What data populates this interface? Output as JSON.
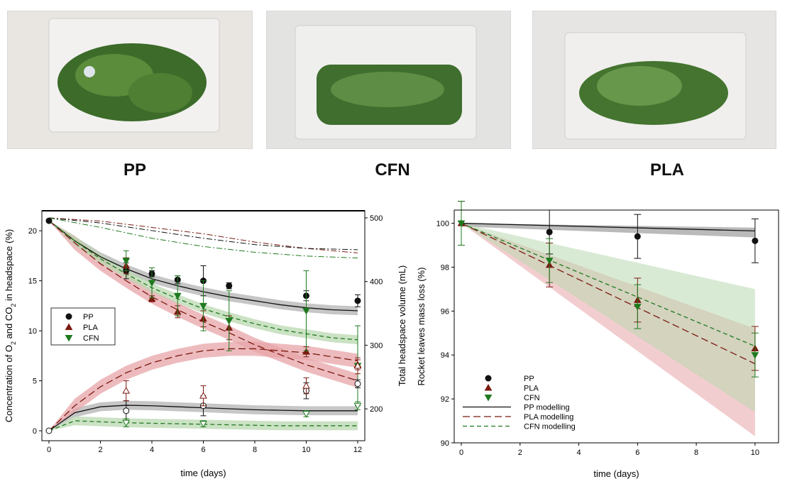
{
  "photos": [
    {
      "label": "PP"
    },
    {
      "label": "CFN"
    },
    {
      "label": "PLA"
    }
  ],
  "chart_data": [
    {
      "type": "scatter",
      "xlabel": "time (days)",
      "ylabel_parts": [
        "Concentration of O",
        "2",
        " and CO",
        "2",
        " in headspace (%)"
      ],
      "y2label": "Total headspace volume (mL)",
      "xlim": [
        0,
        12
      ],
      "ylim": [
        0,
        22
      ],
      "y2lim": [
        150,
        500
      ],
      "xticks": [
        0,
        2,
        4,
        6,
        8,
        10,
        12
      ],
      "yticks": [
        0,
        5,
        10,
        15,
        20
      ],
      "y2ticks": [
        200,
        300,
        400,
        500
      ],
      "colors": {
        "PP": "#111111",
        "PLA": "#7b1a10",
        "CFN": "#1f7a1f"
      },
      "legend": [
        "PP",
        "PLA",
        "CFN"
      ],
      "legend_position": "center-left",
      "series": [
        {
          "name": "PP",
          "kind": "O2",
          "x": [
            0,
            3,
            4,
            5,
            6,
            7,
            10,
            12
          ],
          "y": [
            21,
            16,
            15.7,
            15.1,
            15,
            14.5,
            13.5,
            13
          ],
          "err": [
            0,
            0.8,
            0.3,
            0.4,
            1.5,
            0.3,
            0.5,
            0.6
          ]
        },
        {
          "name": "PLA",
          "kind": "O2",
          "x": [
            3,
            4,
            5,
            6,
            7,
            10,
            12
          ],
          "y": [
            16.5,
            13.2,
            11.9,
            11.2,
            10.3,
            7.9,
            6.6
          ],
          "err": [
            0.8,
            0.3,
            0.6,
            0.8,
            1.2,
            0.5,
            0.5
          ]
        },
        {
          "name": "CFN",
          "kind": "O2",
          "x": [
            3,
            4,
            5,
            6,
            7,
            10,
            12
          ],
          "y": [
            17,
            14.8,
            13.5,
            12.5,
            11,
            12,
            6.5
          ],
          "err": [
            1,
            1.5,
            2,
            2.5,
            3,
            4,
            4
          ]
        },
        {
          "name": "PP",
          "kind": "CO2",
          "x": [
            0,
            3,
            6,
            10,
            12
          ],
          "y": [
            0,
            2,
            2.5,
            4,
            4.7
          ],
          "err": [
            0,
            1,
            1,
            0.8,
            0.4
          ]
        },
        {
          "name": "PLA",
          "kind": "CO2",
          "x": [
            3,
            6,
            10,
            12
          ],
          "y": [
            4,
            3.5,
            4.5,
            6.5
          ],
          "err": [
            1,
            1,
            0.8,
            0.8
          ]
        },
        {
          "name": "CFN",
          "kind": "CO2",
          "x": [
            3,
            6,
            10,
            12
          ],
          "y": [
            0.8,
            0.7,
            1.7,
            2.5
          ],
          "err": [
            0.4,
            0.3,
            0.3,
            0.4
          ]
        }
      ],
      "model_curves": [
        {
          "name": "PP",
          "kind": "O2",
          "x": [
            0,
            1,
            2,
            3,
            4,
            5,
            6,
            7,
            8,
            9,
            10,
            11,
            12
          ],
          "y": [
            21,
            19,
            17.4,
            16.2,
            15.2,
            14.5,
            13.9,
            13.4,
            13,
            12.6,
            12.3,
            12.1,
            12
          ]
        },
        {
          "name": "PLA",
          "kind": "O2",
          "x": [
            0,
            1,
            2,
            3,
            4,
            5,
            6,
            7,
            8,
            9,
            10,
            11,
            12
          ],
          "y": [
            21,
            18.8,
            16.7,
            15,
            13.4,
            12.1,
            10.9,
            9.8,
            8.6,
            7.6,
            6.6,
            5.8,
            5
          ]
        },
        {
          "name": "CFN",
          "kind": "O2",
          "x": [
            0,
            1,
            2,
            3,
            4,
            5,
            6,
            7,
            8,
            9,
            10,
            11,
            12
          ],
          "y": [
            21,
            19,
            17.2,
            15.7,
            14.3,
            13.2,
            12.2,
            11.4,
            10.7,
            10.1,
            9.7,
            9.3,
            9.1
          ]
        },
        {
          "name": "PP",
          "kind": "CO2",
          "x": [
            0,
            1,
            2,
            3,
            4,
            5,
            6,
            7,
            8,
            9,
            10,
            11,
            12
          ],
          "y": [
            0,
            1.8,
            2.4,
            2.55,
            2.5,
            2.4,
            2.3,
            2.2,
            2.1,
            2.05,
            2,
            2,
            2
          ]
        },
        {
          "name": "PLA",
          "kind": "CO2",
          "x": [
            0,
            1,
            2,
            3,
            4,
            5,
            6,
            7,
            8,
            9,
            10,
            11,
            12
          ],
          "y": [
            0,
            2.5,
            4.4,
            5.8,
            6.8,
            7.5,
            8,
            8.2,
            8.2,
            8,
            7.8,
            7.4,
            7
          ]
        },
        {
          "name": "CFN",
          "kind": "CO2",
          "x": [
            0,
            1,
            2,
            3,
            4,
            5,
            6,
            7,
            8,
            9,
            10,
            11,
            12
          ],
          "y": [
            0,
            1,
            0.9,
            0.8,
            0.75,
            0.7,
            0.65,
            0.6,
            0.55,
            0.5,
            0.5,
            0.5,
            0.5
          ]
        }
      ],
      "volume_curves": [
        {
          "name": "PLA",
          "x": [
            0,
            2,
            4,
            6,
            8,
            10,
            12
          ],
          "y": [
            500,
            495,
            485,
            475,
            462,
            452,
            445
          ]
        },
        {
          "name": "PP",
          "x": [
            0,
            2,
            4,
            6,
            8,
            10,
            12
          ],
          "y": [
            500,
            492,
            480,
            468,
            458,
            452,
            450
          ]
        },
        {
          "name": "CFN",
          "x": [
            0,
            2,
            4,
            6,
            8,
            10,
            12
          ],
          "y": [
            500,
            485,
            468,
            455,
            446,
            440,
            437
          ]
        }
      ]
    },
    {
      "type": "scatter",
      "xlabel": "time (days)",
      "ylabel": "Rocket leaves mass loss (%)",
      "xlim": [
        0,
        10.8
      ],
      "ylim": [
        90,
        100.6
      ],
      "xticks": [
        0,
        2,
        4,
        6,
        8,
        10
      ],
      "yticks": [
        90,
        92,
        94,
        96,
        98,
        100
      ],
      "colors": {
        "PP": "#111111",
        "PLA": "#7b1a10",
        "CFN": "#1f7a1f"
      },
      "legend": [
        "PP",
        "PLA",
        "CFN",
        "PP modelling",
        "PLA modelling",
        "CFN modelling"
      ],
      "legend_position": "bottom-left",
      "series": [
        {
          "name": "PP",
          "x": [
            3,
            6,
            10
          ],
          "y": [
            99.6,
            99.4,
            99.2
          ],
          "err": [
            1,
            1,
            1
          ]
        },
        {
          "name": "PLA",
          "x": [
            0,
            3,
            6,
            10
          ],
          "y": [
            100,
            98.1,
            96.5,
            94.3
          ],
          "err": [
            1,
            1,
            1,
            1
          ]
        },
        {
          "name": "CFN",
          "x": [
            0,
            3,
            6,
            10
          ],
          "y": [
            100,
            98.3,
            96.2,
            94
          ],
          "err": [
            1,
            1,
            1,
            1
          ]
        }
      ],
      "model_lines": [
        {
          "name": "PP modelling",
          "x": [
            0,
            10
          ],
          "y": [
            100,
            99.65
          ],
          "band": [
            0.15,
            0.3
          ]
        },
        {
          "name": "PLA modelling",
          "x": [
            0,
            10
          ],
          "y": [
            100,
            93.6
          ],
          "band": [
            0,
            3.3
          ]
        },
        {
          "name": "CFN modelling",
          "x": [
            0,
            10
          ],
          "y": [
            100,
            94.4
          ],
          "band": [
            0,
            3
          ]
        }
      ]
    }
  ]
}
